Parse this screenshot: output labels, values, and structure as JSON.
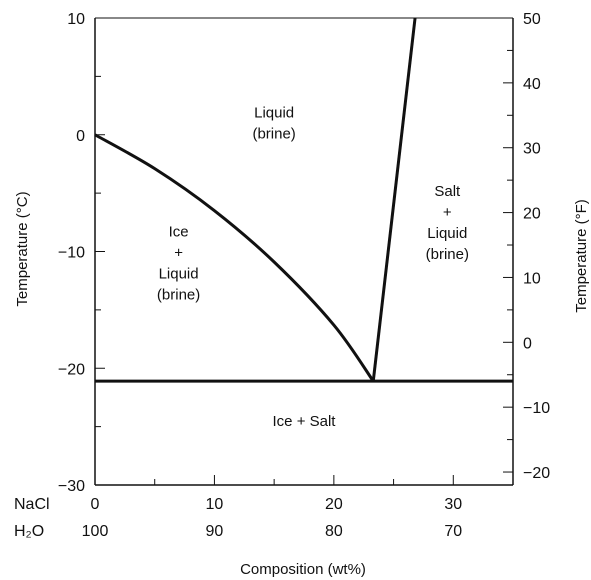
{
  "chart_data": {
    "type": "line",
    "title": "",
    "xlabel": "Composition (wt%)",
    "ylabel_left": "Temperature (°C)",
    "ylabel_right": "Temperature (°F)",
    "xlim": [
      0,
      35
    ],
    "ylim": [
      -30,
      10
    ],
    "y2lim_F": [
      -22,
      50
    ],
    "grid": false,
    "x_tick_rows": [
      {
        "name": "NaCl",
        "values": [
          "0",
          "10",
          "20",
          "30"
        ]
      },
      {
        "name": "H₂O",
        "values": [
          "100",
          "90",
          "80",
          "70"
        ]
      }
    ],
    "x_tick_positions": [
      0,
      10,
      20,
      30
    ],
    "y_ticks_left": [
      10,
      0,
      -10,
      -20,
      -30
    ],
    "y_ticks_left_labels": [
      "10",
      "0",
      "−10",
      "−20",
      "−30"
    ],
    "y_ticks_right": [
      50,
      40,
      30,
      20,
      10,
      0,
      -10,
      -20
    ],
    "y_ticks_right_labels": [
      "50",
      "40",
      "30",
      "20",
      "10",
      "0",
      "−10",
      "−20"
    ],
    "series": [
      {
        "x": [
          0,
          5,
          10,
          15,
          20,
          23.3
        ],
        "y": [
          0,
          -2.9,
          -6.5,
          -10.9,
          -16.3,
          -21.1
        ]
      },
      {
        "x": [
          23.3,
          26.8
        ],
        "y": [
          -21.1,
          10
        ]
      },
      {
        "x": [
          0,
          35
        ],
        "y": [
          -21.1,
          -21.1
        ]
      }
    ],
    "regions": [
      {
        "lines": [
          "Liquid",
          "(brine)"
        ],
        "x": 15,
        "y": 1
      },
      {
        "lines": [
          "Ice",
          "+",
          "Liquid",
          "(brine)"
        ],
        "x": 7,
        "y": -11
      },
      {
        "lines": [
          "Salt",
          "+",
          "Liquid",
          "(brine)"
        ],
        "x": 29.5,
        "y": -7.5
      },
      {
        "lines": [
          "Ice + Salt"
        ],
        "x": 17.5,
        "y": -24.5
      }
    ]
  }
}
